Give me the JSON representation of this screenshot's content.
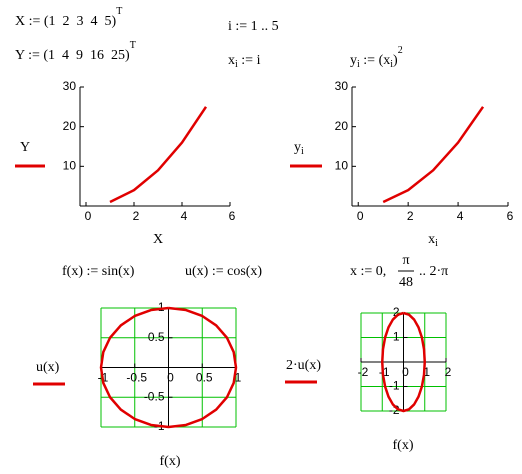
{
  "equations": {
    "X": {
      "main": "X := (1  2  3  4  5)",
      "sup": "T"
    },
    "Y": {
      "main": "Y := (1  4  9  16  25)",
      "sup": "T"
    },
    "i": "i := 1 .. 5",
    "xi": {
      "base": "x",
      "sub": "i",
      "rest": " := i"
    },
    "yi": {
      "base": "y",
      "sub": "i",
      "mid": " := (x",
      "sub2": "i",
      "close": ")",
      "sup": "2"
    },
    "f": "f(x) := sin(x)",
    "u": "u(x) := cos(x)",
    "range": {
      "lhs": "x := 0,",
      "num": "π",
      "den": "48",
      "rest": ".. 2·π"
    }
  },
  "chart_data": [
    {
      "type": "line",
      "ylabel": "Y",
      "xlabel": "X",
      "axis_style": "border",
      "grid": false,
      "color": "#e00000",
      "x": [
        1,
        2,
        3,
        4,
        5
      ],
      "values": [
        1,
        4,
        9,
        16,
        25
      ],
      "xlim": [
        -0.25,
        6
      ],
      "ylim": [
        0,
        30
      ],
      "xticks": [
        0,
        2,
        4,
        6
      ],
      "yticks": [
        10,
        20,
        30
      ]
    },
    {
      "type": "line",
      "ylabel": "y",
      "ylabel_sub": "i",
      "xlabel": "x",
      "xlabel_sub": "i",
      "axis_style": "border",
      "grid": false,
      "color": "#e00000",
      "x": [
        1,
        2,
        3,
        4,
        5
      ],
      "values": [
        1,
        4,
        9,
        16,
        25
      ],
      "xlim": [
        -0.25,
        6
      ],
      "ylim": [
        0,
        30
      ],
      "xticks": [
        0,
        2,
        4,
        6
      ],
      "yticks": [
        10,
        20,
        30
      ]
    },
    {
      "type": "line",
      "ylabel": "u(x)",
      "xlabel": "f(x)",
      "axis_style": "crossed",
      "grid": true,
      "grid_color": "#00c000",
      "color": "#e00000",
      "x": [
        0,
        0.259,
        0.5,
        0.707,
        0.866,
        0.966,
        1,
        0.966,
        0.866,
        0.707,
        0.5,
        0.259,
        0,
        -0.259,
        -0.5,
        -0.707,
        -0.866,
        -0.966,
        -1,
        -0.966,
        -0.866,
        -0.707,
        -0.5,
        -0.259,
        0
      ],
      "values": [
        1,
        0.966,
        0.866,
        0.707,
        0.5,
        0.259,
        0,
        -0.259,
        -0.5,
        -0.707,
        -0.866,
        -0.966,
        -1,
        -0.966,
        -0.866,
        -0.707,
        -0.5,
        -0.259,
        0,
        0.259,
        0.5,
        0.707,
        0.866,
        0.966,
        1
      ],
      "xlim": [
        -1,
        1
      ],
      "ylim": [
        -1,
        1
      ],
      "xticks": [
        -1,
        -0.5,
        0,
        0.5,
        1
      ],
      "yticks": [
        -1,
        -0.5,
        0.5,
        1
      ]
    },
    {
      "type": "line",
      "ylabel": "2·u(x)",
      "xlabel": "f(x)",
      "axis_style": "crossed",
      "grid": true,
      "grid_color": "#00c000",
      "color": "#e00000",
      "x": [
        0,
        0.259,
        0.5,
        0.707,
        0.866,
        0.966,
        1,
        0.966,
        0.866,
        0.707,
        0.5,
        0.259,
        0,
        -0.259,
        -0.5,
        -0.707,
        -0.866,
        -0.966,
        -1,
        -0.966,
        -0.866,
        -0.707,
        -0.5,
        -0.259,
        0
      ],
      "values": [
        2,
        1.932,
        1.732,
        1.414,
        1,
        0.518,
        0,
        -0.518,
        -1,
        -1.414,
        -1.732,
        -1.932,
        -2,
        -1.932,
        -1.732,
        -1.414,
        -1,
        -0.518,
        0,
        0.518,
        1,
        1.414,
        1.732,
        1.932,
        2
      ],
      "xlim": [
        -2,
        2
      ],
      "ylim": [
        -2,
        2
      ],
      "xticks": [
        -2,
        -1,
        0,
        1,
        2
      ],
      "yticks": [
        -2,
        -1,
        1,
        2
      ]
    }
  ]
}
